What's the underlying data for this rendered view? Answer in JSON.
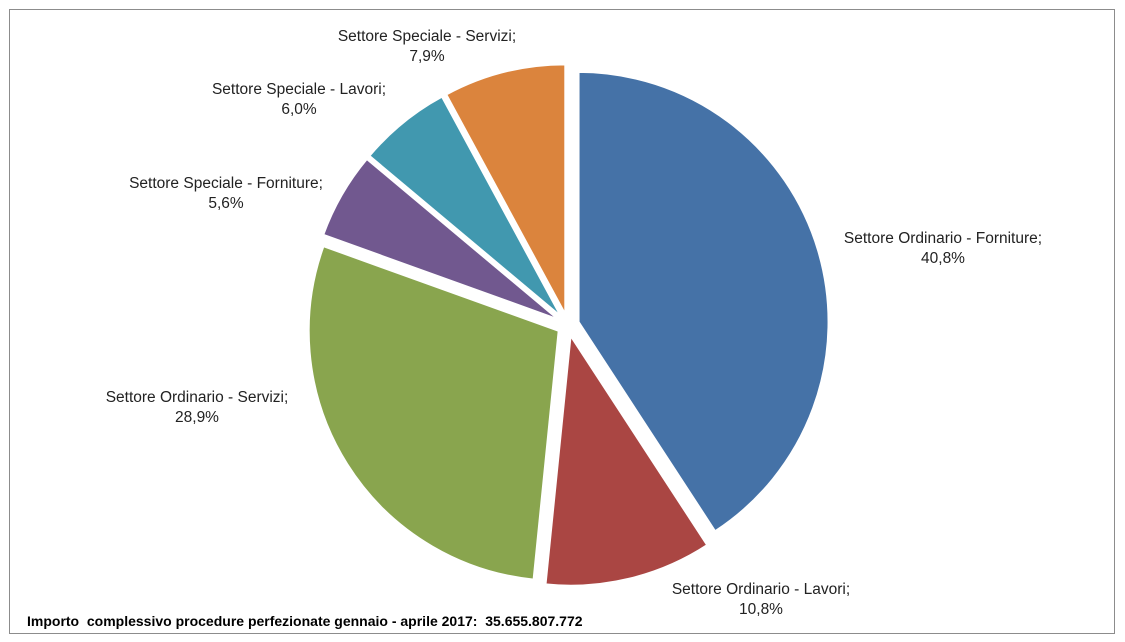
{
  "chart_data": {
    "type": "pie",
    "slices": [
      {
        "label": "Settore Ordinario - Forniture;",
        "value_label": "40,8%",
        "value": 40.8,
        "color": "#4572A7"
      },
      {
        "label": "Settore Ordinario - Lavori;",
        "value_label": "10,8%",
        "value": 10.8,
        "color": "#AA4643"
      },
      {
        "label": "Settore Ordinario - Servizi;",
        "value_label": "28,9%",
        "value": 28.9,
        "color": "#89A54E"
      },
      {
        "label": "Settore Speciale - Forniture;",
        "value_label": "5,6%",
        "value": 5.6,
        "color": "#71588F"
      },
      {
        "label": "Settore Speciale - Lavori;",
        "value_label": "6,0%",
        "value": 6.0,
        "color": "#4198AF"
      },
      {
        "label": "Settore Speciale - Servizi;",
        "value_label": "7,9%",
        "value": 7.9,
        "color": "#DB843D"
      }
    ],
    "start_angle_deg": 0,
    "direction": "clockwise",
    "exploded": true,
    "legend": "none",
    "footer": "Importo  complessivo procedure perfezionate gennaio - aprile 2017:  35.655.807.772"
  }
}
